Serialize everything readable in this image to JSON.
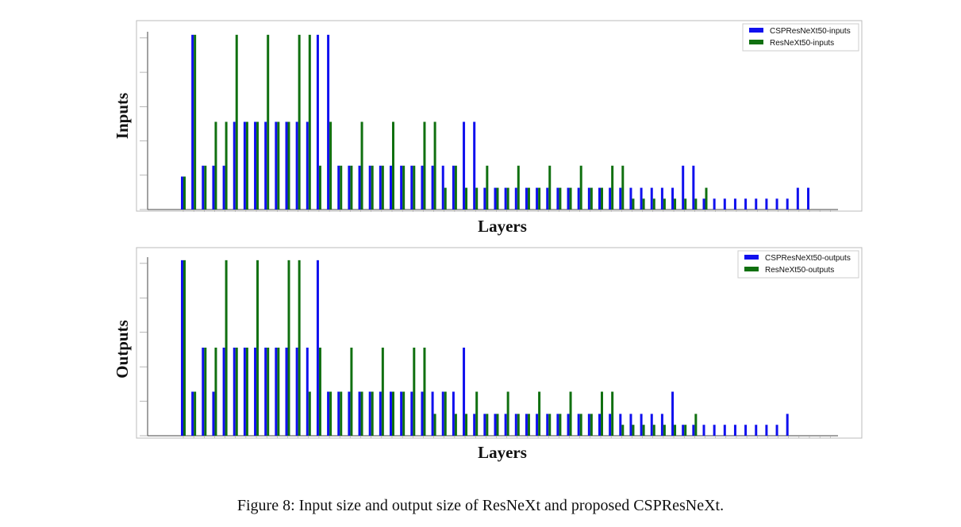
{
  "colors": {
    "series1": "#1010ee",
    "series2": "#107010",
    "frame": "#bbbbbb"
  },
  "figure": {
    "caption": "Figure 8: Input size and output size of ResNeXt and proposed CSPResNeXt."
  },
  "chart_data": [
    {
      "type": "bar",
      "ylabel": "Inputs",
      "xlabel": "Layers",
      "legend_position": "top-right",
      "grid": false,
      "ylim": [
        0,
        5.5
      ],
      "series": [
        {
          "name": "CSPResNeXt50-inputs",
          "values": [
            1,
            5.3,
            1.33,
            1.33,
            1.33,
            2.66,
            2.66,
            2.66,
            2.66,
            2.66,
            2.66,
            2.66,
            2.66,
            5.3,
            5.3,
            1.33,
            1.33,
            1.33,
            1.33,
            1.33,
            1.33,
            1.33,
            1.33,
            1.33,
            1.33,
            1.33,
            1.33,
            2.66,
            2.66,
            0.66,
            0.66,
            0.66,
            0.66,
            0.66,
            0.66,
            0.66,
            0.66,
            0.66,
            0.66,
            0.66,
            0.66,
            0.66,
            0.66,
            0.66,
            0.66,
            0.66,
            0.66,
            0.66,
            1.33,
            1.33,
            0.33,
            0.33,
            0.33,
            0.33,
            0.33,
            0.33,
            0.33,
            0.33,
            0.33,
            0.66,
            0.66,
            0,
            0
          ]
        },
        {
          "name": "ResNeXt50-inputs",
          "values": [
            1,
            5.3,
            1.33,
            2.66,
            2.66,
            5.3,
            2.66,
            2.66,
            5.3,
            2.66,
            2.66,
            5.3,
            5.3,
            1.33,
            2.66,
            1.33,
            1.33,
            2.66,
            1.33,
            1.33,
            2.66,
            1.33,
            1.33,
            2.66,
            2.66,
            0.66,
            1.33,
            0.66,
            0.66,
            1.33,
            0.66,
            0.66,
            1.33,
            0.66,
            0.66,
            1.33,
            0.66,
            0.66,
            1.33,
            0.66,
            0.66,
            1.33,
            1.33,
            0.33,
            0.33,
            0.33,
            0.33,
            0.33,
            0.33,
            0.33,
            0.66,
            0,
            0,
            0,
            0,
            0,
            0,
            0,
            0,
            0,
            0,
            0,
            0
          ]
        }
      ]
    },
    {
      "type": "bar",
      "ylabel": "Outputs",
      "xlabel": "Layers",
      "legend_position": "top-right",
      "grid": false,
      "ylim": [
        0,
        5.5
      ],
      "series": [
        {
          "name": "CSPResNeXt50-outputs",
          "values": [
            5.3,
            1.33,
            2.66,
            1.33,
            2.66,
            2.66,
            2.66,
            2.66,
            2.66,
            2.66,
            2.66,
            2.66,
            2.66,
            5.3,
            1.33,
            1.33,
            1.33,
            1.33,
            1.33,
            1.33,
            1.33,
            1.33,
            1.33,
            1.33,
            1.33,
            1.33,
            1.33,
            2.66,
            0.66,
            0.66,
            0.66,
            0.66,
            0.66,
            0.66,
            0.66,
            0.66,
            0.66,
            0.66,
            0.66,
            0.66,
            0.66,
            0.66,
            0.66,
            0.66,
            0.66,
            0.66,
            0.66,
            1.33,
            0.33,
            0.33,
            0.33,
            0.33,
            0.33,
            0.33,
            0.33,
            0.33,
            0.33,
            0.33,
            0.66,
            0,
            0,
            0,
            0
          ]
        },
        {
          "name": "ResNeXt50-outputs",
          "values": [
            5.3,
            1.33,
            2.66,
            2.66,
            5.3,
            2.66,
            2.66,
            5.3,
            2.66,
            2.66,
            5.3,
            5.3,
            1.33,
            2.66,
            1.33,
            1.33,
            2.66,
            1.33,
            1.33,
            2.66,
            1.33,
            1.33,
            2.66,
            2.66,
            0.66,
            1.33,
            0.66,
            0.66,
            1.33,
            0.66,
            0.66,
            1.33,
            0.66,
            0.66,
            1.33,
            0.66,
            0.66,
            1.33,
            0.66,
            0.66,
            1.33,
            1.33,
            0.33,
            0.33,
            0.33,
            0.33,
            0.33,
            0.33,
            0.33,
            0.66,
            0,
            0,
            0,
            0,
            0,
            0,
            0,
            0,
            0,
            0,
            0,
            0,
            0
          ]
        }
      ]
    }
  ]
}
